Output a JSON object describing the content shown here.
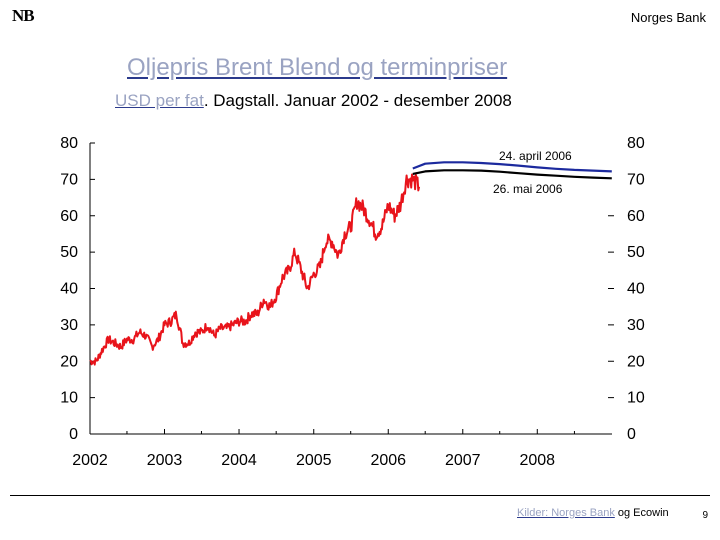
{
  "header": {
    "logo_text": "NB",
    "brand": "Norges Bank"
  },
  "title": "Oljepris Brent Blend og terminpriser",
  "subtitle": {
    "unit": "USD per fat",
    "rest": ". Dagstall. Januar 2002 - desember 2008"
  },
  "footer": {
    "sources_link": "Kilder: Norges Bank",
    "sources_rest": " og Ecowin",
    "page_number": "9"
  },
  "colors": {
    "spot": "#e8141b",
    "forward_apr": "#1c2a9e",
    "forward_may": "#000000"
  },
  "chart_data": {
    "type": "line",
    "xlim": [
      "2002-01-01",
      "2009-01-01"
    ],
    "ylim": [
      0,
      80
    ],
    "x_ticks": [
      "2002",
      "2003",
      "2004",
      "2005",
      "2006",
      "2007",
      "2008"
    ],
    "y_ticks_left": [
      "0",
      "10",
      "20",
      "30",
      "40",
      "50",
      "60",
      "70",
      "80"
    ],
    "y_ticks_right": [
      "0",
      "10",
      "20",
      "30",
      "40",
      "50",
      "60",
      "70",
      "80"
    ],
    "series": [
      {
        "key": "spot",
        "x": [
          "2002-01-01",
          "2002-02-01",
          "2002-03-01",
          "2002-04-01",
          "2002-05-01",
          "2002-06-01",
          "2002-07-01",
          "2002-08-01",
          "2002-09-01",
          "2002-10-01",
          "2002-11-01",
          "2002-12-01",
          "2003-01-01",
          "2003-02-01",
          "2003-03-01",
          "2003-04-01",
          "2003-05-01",
          "2003-06-01",
          "2003-07-01",
          "2003-08-01",
          "2003-09-01",
          "2003-10-01",
          "2003-11-01",
          "2003-12-01",
          "2004-01-01",
          "2004-02-01",
          "2004-03-01",
          "2004-04-01",
          "2004-05-01",
          "2004-06-01",
          "2004-07-01",
          "2004-08-01",
          "2004-09-01",
          "2004-10-01",
          "2004-11-01",
          "2004-12-01",
          "2005-01-01",
          "2005-02-01",
          "2005-03-01",
          "2005-04-01",
          "2005-05-01",
          "2005-06-01",
          "2005-07-01",
          "2005-08-01",
          "2005-09-01",
          "2005-10-01",
          "2005-11-01",
          "2005-12-01",
          "2006-01-01",
          "2006-02-01",
          "2006-03-01",
          "2006-04-01",
          "2006-05-01",
          "2006-06-01"
        ],
        "values": [
          20,
          20,
          23,
          26,
          25,
          24,
          26,
          26,
          28,
          27,
          24,
          26,
          30,
          31,
          33,
          25,
          25,
          28,
          28,
          30,
          27,
          29,
          29,
          30,
          31,
          31,
          33,
          33,
          37,
          35,
          38,
          43,
          45,
          50,
          45,
          40,
          44,
          46,
          53,
          53,
          49,
          55,
          57,
          64,
          62,
          59,
          55,
          57,
          63,
          60,
          63,
          70,
          70,
          68
        ]
      },
      {
        "key": "forward_apr",
        "label": "24. april 2006",
        "x": [
          "2006-05-01",
          "2006-07-01",
          "2006-10-01",
          "2007-01-01",
          "2007-04-01",
          "2007-07-01",
          "2007-10-01",
          "2008-01-01",
          "2008-04-01",
          "2008-07-01",
          "2008-10-01",
          "2008-12-31"
        ],
        "values": [
          73,
          74.3,
          74.7,
          74.7,
          74.5,
          74.2,
          73.8,
          73.3,
          72.9,
          72.6,
          72.4,
          72.2
        ]
      },
      {
        "key": "forward_may",
        "label": "26. mai 2006",
        "x": [
          "2006-05-01",
          "2006-07-01",
          "2006-10-01",
          "2007-01-01",
          "2007-04-01",
          "2007-07-01",
          "2007-10-01",
          "2008-01-01",
          "2008-04-01",
          "2008-07-01",
          "2008-10-01",
          "2008-12-31"
        ],
        "values": [
          71.5,
          72.2,
          72.5,
          72.5,
          72.4,
          72.1,
          71.7,
          71.3,
          71,
          70.7,
          70.5,
          70.3
        ]
      }
    ]
  }
}
